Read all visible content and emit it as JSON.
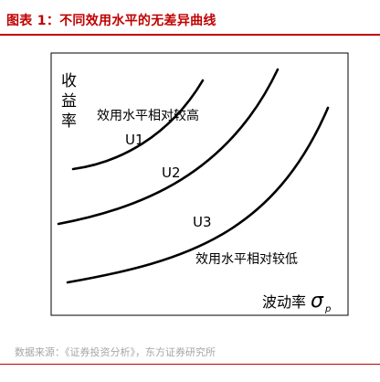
{
  "figure": {
    "title": "图表 1：不同效用水平的无差异曲线",
    "source": "数据来源：《证券投资分析》，东方证券研究所"
  },
  "diagram": {
    "y_axis_label": [
      "收",
      "益",
      "率"
    ],
    "x_axis_label": "波动率",
    "x_axis_symbol": "σ",
    "x_axis_subscript": "p",
    "curves": [
      {
        "label": "U1"
      },
      {
        "label": "U2"
      },
      {
        "label": "U3"
      }
    ],
    "annotation_high": "效用水平相对较高",
    "annotation_low": "效用水平相对较低"
  }
}
